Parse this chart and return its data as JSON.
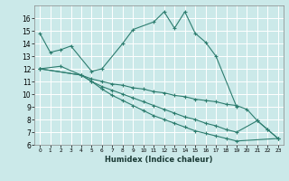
{
  "background_color": "#cbe9e9",
  "grid_color": "#ffffff",
  "line_color": "#2d7d6f",
  "xlabel": "Humidex (Indice chaleur)",
  "xlim": [
    -0.5,
    23.5
  ],
  "ylim": [
    6,
    17
  ],
  "xtick_vals": [
    0,
    1,
    2,
    3,
    4,
    5,
    6,
    7,
    8,
    9,
    10,
    11,
    12,
    13,
    14,
    15,
    16,
    17,
    18,
    19,
    20,
    21,
    22,
    23
  ],
  "ytick_vals": [
    6,
    7,
    8,
    9,
    10,
    11,
    12,
    13,
    14,
    15,
    16
  ],
  "series1_x": [
    0,
    1,
    2,
    3,
    5,
    6,
    8,
    9,
    11,
    12,
    13,
    14,
    15,
    16,
    17,
    19
  ],
  "series1_y": [
    14.8,
    13.3,
    13.5,
    13.8,
    11.8,
    12.0,
    14.0,
    15.1,
    15.7,
    16.5,
    15.2,
    16.5,
    14.8,
    14.1,
    13.0,
    9.0
  ],
  "series2_x": [
    0,
    2,
    4,
    5,
    6,
    7,
    8,
    9,
    10,
    11,
    12,
    13,
    14,
    15,
    16,
    17,
    18,
    19,
    20,
    21,
    22,
    23
  ],
  "series2_y": [
    12.0,
    12.2,
    11.5,
    11.2,
    11.0,
    10.8,
    10.7,
    10.5,
    10.4,
    10.2,
    10.1,
    9.9,
    9.8,
    9.6,
    9.5,
    9.4,
    9.2,
    9.1,
    8.8,
    7.9,
    7.2,
    6.5
  ],
  "series3_x": [
    0,
    4,
    5,
    6,
    7,
    8,
    9,
    10,
    11,
    12,
    13,
    14,
    15,
    16,
    17,
    18,
    19,
    21,
    22,
    23
  ],
  "series3_y": [
    12.0,
    11.5,
    11.0,
    10.6,
    10.3,
    10.0,
    9.7,
    9.4,
    9.1,
    8.8,
    8.5,
    8.2,
    8.0,
    7.7,
    7.5,
    7.2,
    7.0,
    7.9,
    7.2,
    6.5
  ],
  "series4_x": [
    0,
    4,
    5,
    6,
    7,
    8,
    9,
    10,
    11,
    12,
    13,
    14,
    15,
    16,
    17,
    18,
    19,
    23
  ],
  "series4_y": [
    12.0,
    11.5,
    11.0,
    10.4,
    9.9,
    9.5,
    9.1,
    8.7,
    8.3,
    8.0,
    7.7,
    7.4,
    7.1,
    6.9,
    6.7,
    6.5,
    6.3,
    6.5
  ]
}
